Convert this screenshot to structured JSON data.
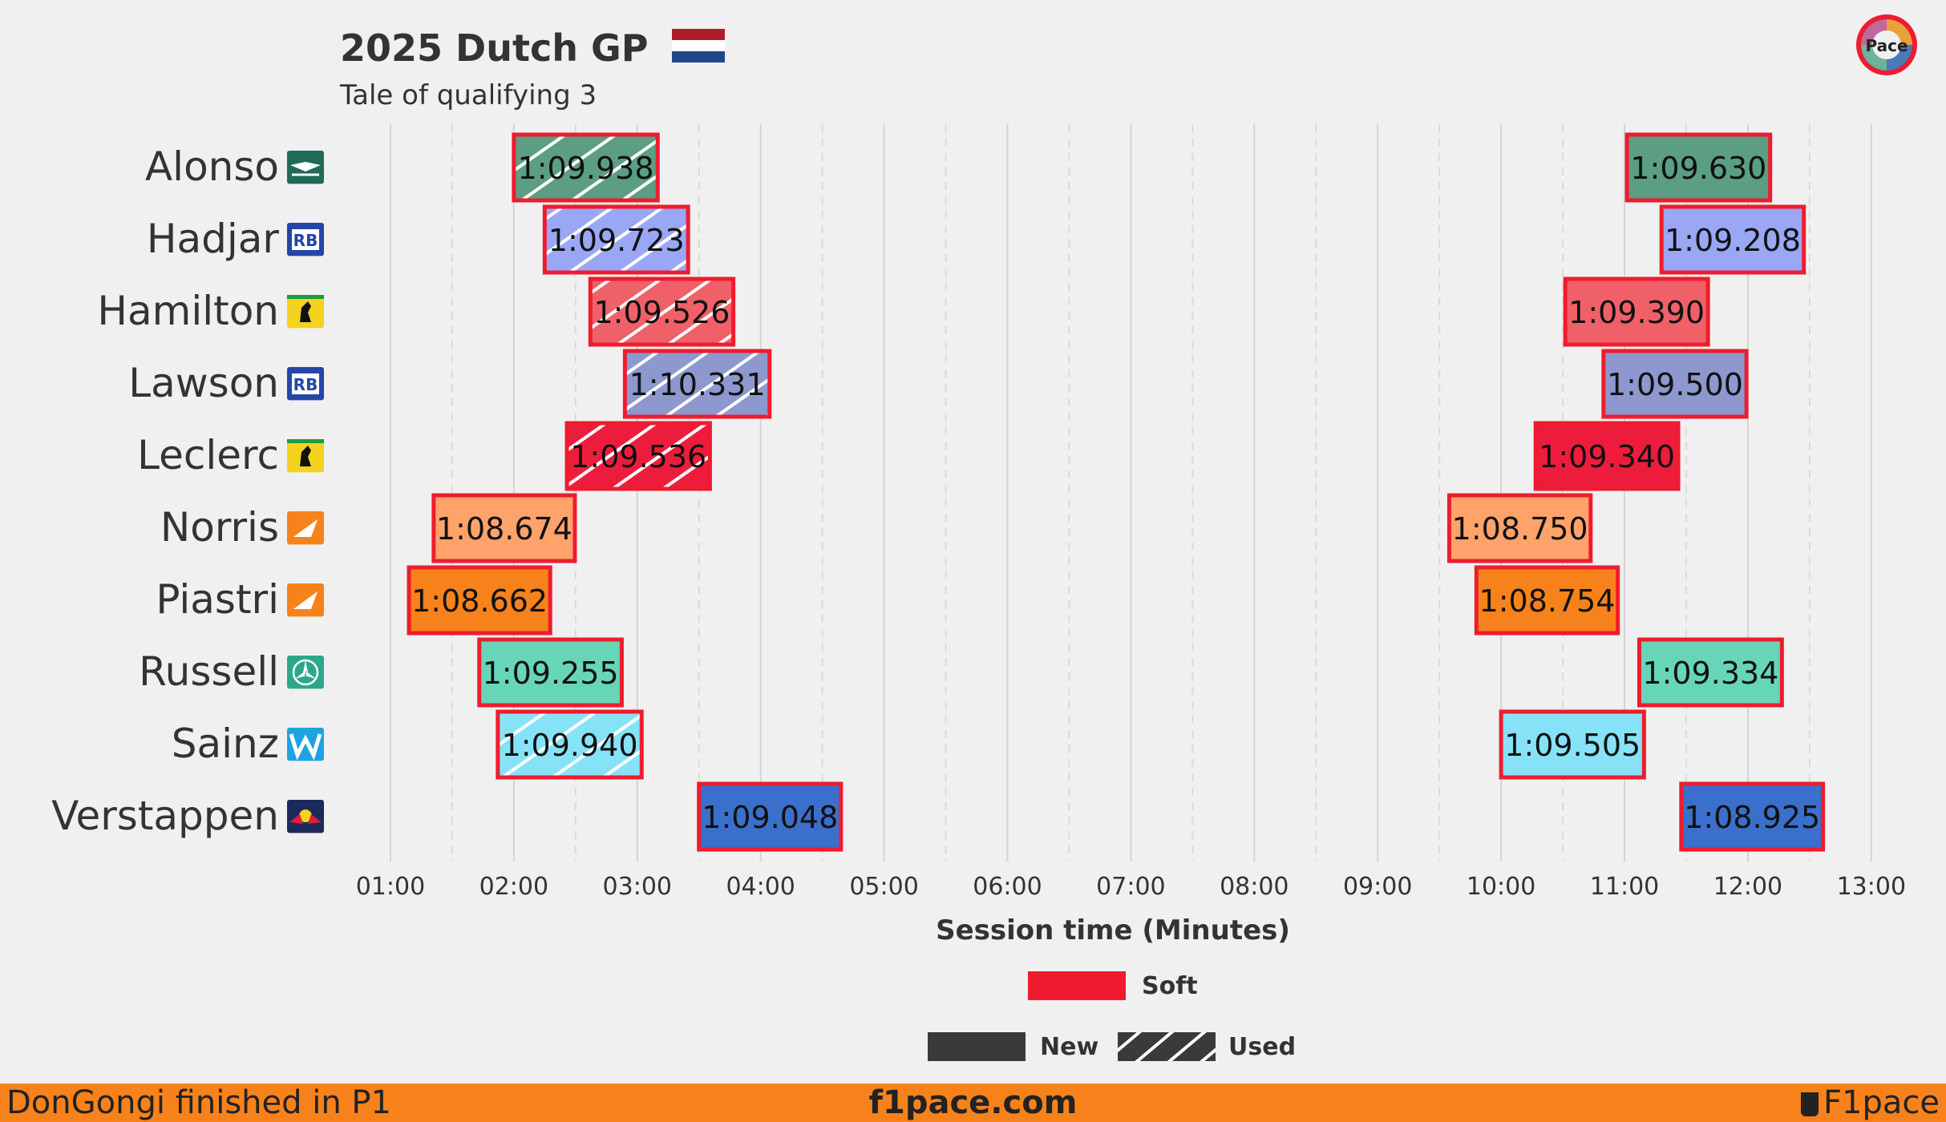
{
  "header": {
    "title": "2025 Dutch GP",
    "subtitle": "Tale of qualifying 3",
    "flag_colors": [
      "#ae1c28",
      "#ffffff",
      "#21468b"
    ]
  },
  "logo": {
    "text": "Pace",
    "icon": "pace-logo-icon"
  },
  "footer": {
    "left": "DonGongi finished in P1",
    "center": "f1pace.com",
    "right": "F1pace",
    "right_icon": "coffee-cup-icon"
  },
  "colors": {
    "background": "#f0f0f0",
    "soft_compound": "#ee1c2e",
    "footer": "#f7821b",
    "legend_swatch": "#3a3a3a"
  },
  "chart_data": {
    "type": "bar",
    "orientation": "horizontal",
    "xlabel": "Session time (Minutes)",
    "xlim": [
      0.5,
      13.3
    ],
    "x_ticks": [
      "01:00",
      "02:00",
      "03:00",
      "04:00",
      "05:00",
      "06:00",
      "07:00",
      "08:00",
      "09:00",
      "10:00",
      "11:00",
      "12:00",
      "13:00"
    ],
    "x_tick_values": [
      1,
      2,
      3,
      4,
      5,
      6,
      7,
      8,
      9,
      10,
      11,
      12,
      13
    ],
    "grid": "vertical",
    "legend": {
      "placement": "bottom-center",
      "compound": [
        {
          "label": "Soft",
          "color": "#ee1c2e"
        }
      ],
      "condition": [
        {
          "label": "New",
          "pattern": "solid"
        },
        {
          "label": "Used",
          "pattern": "hatched"
        }
      ]
    },
    "drivers": [
      {
        "name": "Alonso",
        "team_icon": "aston-martin-icon",
        "color": "#5b9e84",
        "laps": [
          {
            "start": 2.0,
            "time": "1:09.938",
            "used": true
          },
          {
            "start": 11.02,
            "time": "1:09.630",
            "used": false
          }
        ]
      },
      {
        "name": "Hadjar",
        "team_icon": "racing-bulls-icon",
        "color": "#9aa7f5",
        "laps": [
          {
            "start": 2.25,
            "time": "1:09.723",
            "used": true
          },
          {
            "start": 11.3,
            "time": "1:09.208",
            "used": false
          }
        ]
      },
      {
        "name": "Hamilton",
        "team_icon": "ferrari-icon",
        "color": "#f06068",
        "laps": [
          {
            "start": 2.62,
            "time": "1:09.526",
            "used": true
          },
          {
            "start": 10.52,
            "time": "1:09.390",
            "used": false
          }
        ]
      },
      {
        "name": "Lawson",
        "team_icon": "racing-bulls-icon",
        "color": "#8d98cf",
        "laps": [
          {
            "start": 2.9,
            "time": "1:10.331",
            "used": true
          },
          {
            "start": 10.83,
            "time": "1:09.500",
            "used": false
          }
        ]
      },
      {
        "name": "Leclerc",
        "team_icon": "ferrari-icon",
        "color": "#ee1c3c",
        "laps": [
          {
            "start": 2.43,
            "time": "1:09.536",
            "used": true
          },
          {
            "start": 10.28,
            "time": "1:09.340",
            "used": false
          }
        ]
      },
      {
        "name": "Norris",
        "team_icon": "mclaren-icon",
        "color": "#ffa36b",
        "laps": [
          {
            "start": 1.35,
            "time": "1:08.674",
            "used": false
          },
          {
            "start": 9.58,
            "time": "1:08.750",
            "used": false
          }
        ]
      },
      {
        "name": "Piastri",
        "team_icon": "mclaren-icon",
        "color": "#f7821b",
        "laps": [
          {
            "start": 1.15,
            "time": "1:08.662",
            "used": false
          },
          {
            "start": 9.8,
            "time": "1:08.754",
            "used": false
          }
        ]
      },
      {
        "name": "Russell",
        "team_icon": "mercedes-icon",
        "color": "#67d6b8",
        "laps": [
          {
            "start": 1.72,
            "time": "1:09.255",
            "used": false
          },
          {
            "start": 11.12,
            "time": "1:09.334",
            "used": false
          }
        ]
      },
      {
        "name": "Sainz",
        "team_icon": "williams-icon",
        "color": "#86e3f7",
        "laps": [
          {
            "start": 1.87,
            "time": "1:09.940",
            "used": true
          },
          {
            "start": 10.0,
            "time": "1:09.505",
            "used": false
          }
        ]
      },
      {
        "name": "Verstappen",
        "team_icon": "red-bull-icon",
        "color": "#3a6fcb",
        "laps": [
          {
            "start": 3.5,
            "time": "1:09.048",
            "used": false
          },
          {
            "start": 11.46,
            "time": "1:08.925",
            "used": false
          }
        ]
      }
    ]
  }
}
